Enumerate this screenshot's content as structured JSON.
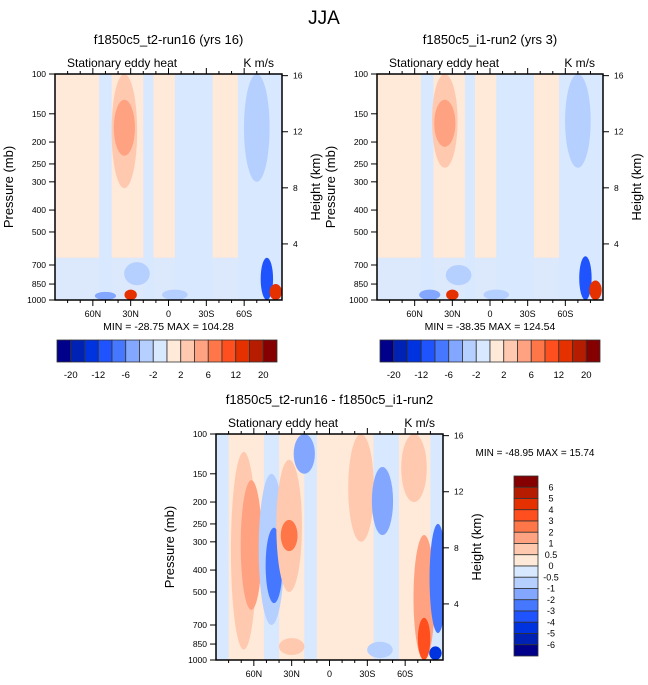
{
  "page_title": "JJA",
  "chart_data": [
    {
      "type": "heatmap",
      "title": "f1850c5_t2-run16 (yrs 16)",
      "left_label": "Stationary eddy heat",
      "right_label": "K m/s",
      "ylabel": "Pressure (mb)",
      "ylabel_right": "Height (km)",
      "x_ticks": [
        "60N",
        "30N",
        "0",
        "30S",
        "60S"
      ],
      "x_tick_values": [
        60,
        30,
        0,
        -30,
        -60
      ],
      "xlim": [
        90,
        -90
      ],
      "y_ticks": [
        "100",
        "150",
        "200",
        "250",
        "300",
        "400",
        "500",
        "700",
        "850",
        "1000"
      ],
      "y_tick_values": [
        100,
        150,
        200,
        250,
        300,
        400,
        500,
        700,
        850,
        1000
      ],
      "ylim": [
        1000,
        100
      ],
      "y_right_ticks": [
        "4",
        "8",
        "12",
        "16"
      ],
      "y_right_values": [
        4,
        8,
        12,
        16
      ],
      "stats": "MIN = -28.75  MAX = 104.28",
      "min": -28.75,
      "max": 104.28,
      "features": [
        {
          "lat": 35,
          "p_top": 100,
          "p_bot": 320,
          "level": 2,
          "sign": "pos"
        },
        {
          "lat": 35,
          "p_top": 130,
          "p_bot": 230,
          "level": 3,
          "sign": "pos"
        },
        {
          "lat": 30,
          "p_top": 900,
          "p_bot": 1000,
          "level": 6,
          "sign": "pos"
        },
        {
          "lat": 50,
          "p_top": 920,
          "p_bot": 1000,
          "level": 3,
          "sign": "neg"
        },
        {
          "lat": 25,
          "p_top": 680,
          "p_bot": 860,
          "level": 2,
          "sign": "neg"
        },
        {
          "lat": -70,
          "p_top": 100,
          "p_bot": 300,
          "level": 2,
          "sign": "neg"
        },
        {
          "lat": -78,
          "p_top": 650,
          "p_bot": 1000,
          "level": 5,
          "sign": "neg"
        },
        {
          "lat": -85,
          "p_top": 850,
          "p_bot": 1000,
          "level": 6,
          "sign": "pos"
        },
        {
          "lat": -5,
          "p_top": 900,
          "p_bot": 1000,
          "level": 2,
          "sign": "neg"
        }
      ]
    },
    {
      "type": "heatmap",
      "title": "f1850c5_i1-run2 (yrs 3)",
      "left_label": "Stationary eddy heat",
      "right_label": "K m/s",
      "ylabel": "Pressure (mb)",
      "ylabel_right": "Height (km)",
      "x_ticks": [
        "60N",
        "30N",
        "0",
        "30S",
        "60S"
      ],
      "x_tick_values": [
        60,
        30,
        0,
        -30,
        -60
      ],
      "xlim": [
        90,
        -90
      ],
      "y_ticks": [
        "100",
        "150",
        "200",
        "250",
        "300",
        "400",
        "500",
        "700",
        "850",
        "1000"
      ],
      "y_tick_values": [
        100,
        150,
        200,
        250,
        300,
        400,
        500,
        700,
        850,
        1000
      ],
      "ylim": [
        1000,
        100
      ],
      "y_right_ticks": [
        "4",
        "8",
        "12",
        "16"
      ],
      "y_right_values": [
        4,
        8,
        12,
        16
      ],
      "stats": "MIN = -38.35  MAX = 124.54",
      "min": -38.35,
      "max": 124.54,
      "features": [
        {
          "lat": 36,
          "p_top": 100,
          "p_bot": 260,
          "level": 2,
          "sign": "pos"
        },
        {
          "lat": 36,
          "p_top": 130,
          "p_bot": 210,
          "level": 3,
          "sign": "pos"
        },
        {
          "lat": 30,
          "p_top": 900,
          "p_bot": 1000,
          "level": 6,
          "sign": "pos"
        },
        {
          "lat": 48,
          "p_top": 900,
          "p_bot": 1000,
          "level": 3,
          "sign": "neg"
        },
        {
          "lat": 25,
          "p_top": 700,
          "p_bot": 860,
          "level": 2,
          "sign": "neg"
        },
        {
          "lat": -70,
          "p_top": 100,
          "p_bot": 260,
          "level": 2,
          "sign": "neg"
        },
        {
          "lat": -76,
          "p_top": 640,
          "p_bot": 1000,
          "level": 5,
          "sign": "neg"
        },
        {
          "lat": -84,
          "p_top": 820,
          "p_bot": 1000,
          "level": 6,
          "sign": "pos"
        },
        {
          "lat": -5,
          "p_top": 900,
          "p_bot": 1000,
          "level": 2,
          "sign": "neg"
        }
      ]
    },
    {
      "type": "heatmap",
      "title": "f1850c5_t2-run16 - f1850c5_i1-run2",
      "left_label": "Stationary eddy heat",
      "right_label": "K m/s",
      "ylabel": "Pressure (mb)",
      "ylabel_right": "Height (km)",
      "x_ticks": [
        "60N",
        "30N",
        "0",
        "30S",
        "60S"
      ],
      "x_tick_values": [
        60,
        30,
        0,
        -30,
        -60
      ],
      "xlim": [
        90,
        -90
      ],
      "y_ticks": [
        "100",
        "150",
        "200",
        "250",
        "300",
        "400",
        "500",
        "700",
        "850",
        "1000"
      ],
      "y_tick_values": [
        100,
        150,
        200,
        250,
        300,
        400,
        500,
        700,
        850,
        1000
      ],
      "ylim": [
        1000,
        100
      ],
      "y_right_ticks": [
        "4",
        "8",
        "12",
        "16"
      ],
      "y_right_values": [
        4,
        8,
        12,
        16
      ],
      "stats": "MIN = -48.95  MAX =  15.74",
      "min": -48.95,
      "max": 15.74,
      "features": [
        {
          "lat": 68,
          "p_top": 120,
          "p_bot": 900,
          "level": 2,
          "sign": "pos"
        },
        {
          "lat": 62,
          "p_top": 160,
          "p_bot": 600,
          "level": 3,
          "sign": "pos"
        },
        {
          "lat": 46,
          "p_top": 150,
          "p_bot": 700,
          "level": 2,
          "sign": "neg"
        },
        {
          "lat": 44,
          "p_top": 260,
          "p_bot": 560,
          "level": 4,
          "sign": "neg"
        },
        {
          "lat": 32,
          "p_top": 130,
          "p_bot": 500,
          "level": 2,
          "sign": "pos"
        },
        {
          "lat": 32,
          "p_top": 240,
          "p_bot": 330,
          "level": 4,
          "sign": "pos"
        },
        {
          "lat": 20,
          "p_top": 100,
          "p_bot": 150,
          "level": 3,
          "sign": "neg"
        },
        {
          "lat": -25,
          "p_top": 100,
          "p_bot": 300,
          "level": 2,
          "sign": "pos"
        },
        {
          "lat": -42,
          "p_top": 140,
          "p_bot": 280,
          "level": 3,
          "sign": "neg"
        },
        {
          "lat": -67,
          "p_top": 100,
          "p_bot": 200,
          "level": 2,
          "sign": "pos"
        },
        {
          "lat": -75,
          "p_top": 280,
          "p_bot": 1000,
          "level": 3,
          "sign": "pos"
        },
        {
          "lat": -75,
          "p_top": 650,
          "p_bot": 1000,
          "level": 5,
          "sign": "pos"
        },
        {
          "lat": -86,
          "p_top": 250,
          "p_bot": 760,
          "level": 4,
          "sign": "neg"
        },
        {
          "lat": -84,
          "p_top": 870,
          "p_bot": 1000,
          "level": 6,
          "sign": "neg"
        },
        {
          "lat": 30,
          "p_top": 800,
          "p_bot": 950,
          "level": 2,
          "sign": "pos"
        },
        {
          "lat": -40,
          "p_top": 830,
          "p_bot": 980,
          "level": 2,
          "sign": "neg"
        }
      ]
    }
  ],
  "colorbars": [
    {
      "orientation": "horizontal",
      "labels": [
        "-20",
        "-12",
        "-6",
        "-2",
        "2",
        "6",
        "12",
        "20"
      ],
      "colors": [
        "#00008a",
        "#0022b4",
        "#0033e0",
        "#1f53fe",
        "#4678ff",
        "#83a7ff",
        "#b5cfff",
        "#d8e8ff",
        "#ffe9d8",
        "#ffc9b0",
        "#ffa282",
        "#ff7748",
        "#ff4f1f",
        "#e53000",
        "#b61d00",
        "#850000"
      ]
    },
    {
      "orientation": "horizontal",
      "labels": [
        "-20",
        "-12",
        "-6",
        "-2",
        "2",
        "6",
        "12",
        "20"
      ],
      "colors": [
        "#00008a",
        "#0022b4",
        "#0033e0",
        "#1f53fe",
        "#4678ff",
        "#83a7ff",
        "#b5cfff",
        "#d8e8ff",
        "#ffe9d8",
        "#ffc9b0",
        "#ffa282",
        "#ff7748",
        "#ff4f1f",
        "#e53000",
        "#b61d00",
        "#850000"
      ]
    },
    {
      "orientation": "vertical",
      "labels": [
        "6",
        "5",
        "4",
        "3",
        "2",
        "1",
        "0.5",
        "0",
        "-0.5",
        "-1",
        "-2",
        "-3",
        "-4",
        "-5",
        "-6"
      ],
      "colors": [
        "#850000",
        "#b61d00",
        "#e53000",
        "#ff4f1f",
        "#ff7748",
        "#ffa282",
        "#ffc9b0",
        "#ffe9d8",
        "#d8e8ff",
        "#b5cfff",
        "#83a7ff",
        "#4678ff",
        "#1f53fe",
        "#0033e0",
        "#0022b4",
        "#00008a"
      ]
    }
  ]
}
